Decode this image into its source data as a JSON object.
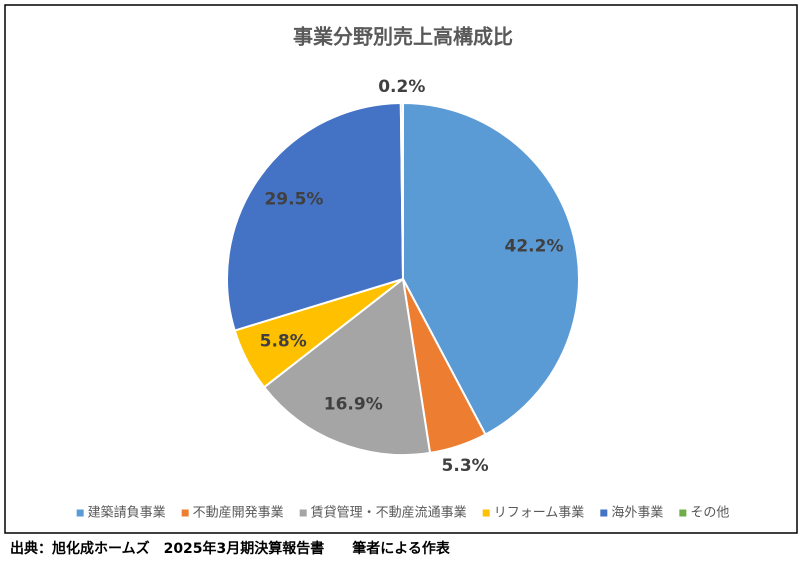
{
  "chart_data": {
    "type": "pie",
    "title": "事業分野別売上高構成比",
    "categories": [
      "建築請負事業",
      "不動産開発事業",
      "賃貸管理・不動産流通事業",
      "リフォーム事業",
      "海外事業",
      "その他"
    ],
    "values": [
      42.2,
      5.3,
      16.9,
      5.8,
      29.5,
      0.2
    ],
    "value_labels": [
      "42.2%",
      "5.3%",
      "16.9%",
      "5.8%",
      "29.5%",
      "0.2%"
    ],
    "colors": [
      "#5b9bd5",
      "#ed7d31",
      "#a5a5a5",
      "#ffc000",
      "#4472c4",
      "#70ad47"
    ],
    "legend": "bottom",
    "source": "出典：旭化成ホームズ　2025年3月期決算報告書　　筆者による作表"
  }
}
